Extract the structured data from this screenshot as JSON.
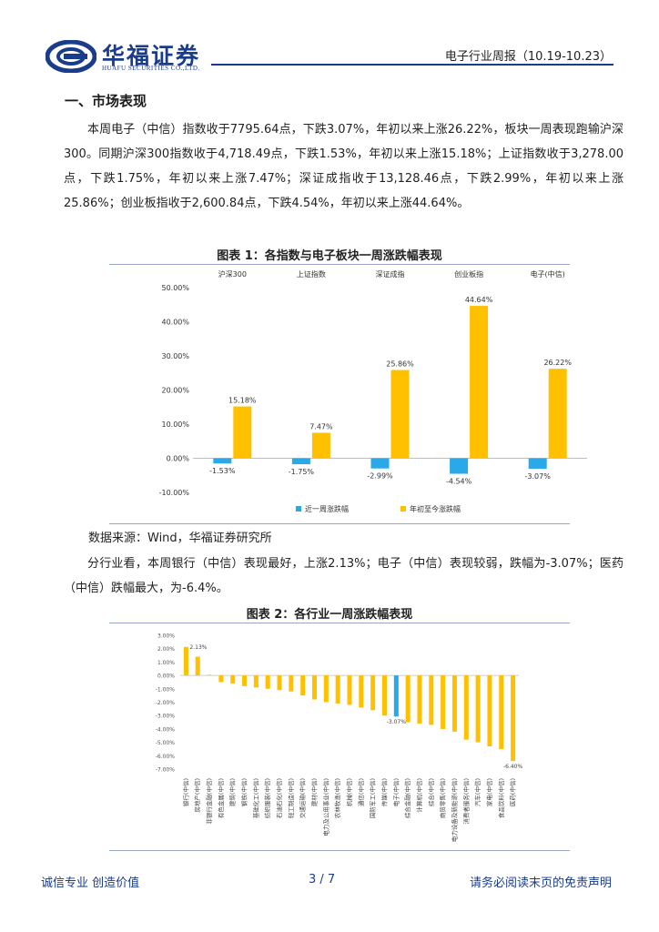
{
  "header": {
    "company_cn": "华福证券",
    "company_en": "HUAFU SECURITIES CO.,LTD.",
    "report_title": "电子行业周报（10.19-10.23）"
  },
  "section": {
    "title": "一、市场表现"
  },
  "paragraph1": "本周电子（中信）指数收于7795.64点，下跌3.07%，年初以来上涨26.22%，板块一周表现跑输沪深300。同期沪深300指数收于4,718.49点，下跌1.53%，年初以来上涨15.18%；上证指数收于3,278.00点，下跌1.75%，年初以来上涨7.47%；深证成指收于13,128.46点，下跌2.99%，年初以来上涨25.86%；创业板指收于2,600.84点，下跌4.54%，年初以来上涨44.64%。",
  "figure1": {
    "title": "图表 1：各指数与电子板块一周涨跌幅表现"
  },
  "source": "数据来源：Wind，华福证券研究所",
  "paragraph2": "分行业看，本周银行（中信）表现最好，上涨2.13%；电子（中信）表现较弱，跌幅为-3.07%；医药（中信）跌幅最大，为-6.4%。",
  "figure2": {
    "title": "图表 2：各行业一周涨跌幅表现"
  },
  "footer": {
    "left": "诚信专业  创造价值",
    "page": "3 / 7",
    "right": "请务必阅读末页的免责声明"
  },
  "colors": {
    "brand": "#1a3c8c",
    "weekly": "#2aa8e8",
    "ytd": "#ffc000"
  },
  "chart_data": [
    {
      "type": "bar",
      "categories": [
        "沪深300",
        "上证指数",
        "深证成指",
        "创业板指",
        "电子(中信)"
      ],
      "series": [
        {
          "name": "近一周涨跌幅",
          "values": [
            -1.53,
            -1.75,
            -2.99,
            -4.54,
            -3.07
          ],
          "labels": [
            "-1.53%",
            "-1.75%",
            "-2.99%",
            "-4.54%",
            "-3.07%"
          ]
        },
        {
          "name": "年初至今涨跌幅",
          "values": [
            15.18,
            7.47,
            25.86,
            44.64,
            26.22
          ],
          "labels": [
            "15.18%",
            "7.47%",
            "25.86%",
            "44.64%",
            "26.22%"
          ]
        }
      ],
      "ylim": [
        -10,
        50
      ],
      "yticks": [
        "50.00%",
        "40.00%",
        "30.00%",
        "20.00%",
        "10.00%",
        "0.00%",
        "-10.00%"
      ],
      "legend": "bottom"
    },
    {
      "type": "bar",
      "categories": [
        "银行(中信)",
        "房地产(中信)",
        "非银行金融(中信)",
        "有色金属(中信)",
        "建筑(中信)",
        "钢铁(中信)",
        "基础化工(中信)",
        "纺织服装(中信)",
        "石油石化(中信)",
        "轻工制造(中信)",
        "交通运输(中信)",
        "建材(中信)",
        "电力及公用事业(中信)",
        "农林牧渔(中信)",
        "机械(中信)",
        "通信(中信)",
        "国防军工(中信)",
        "传媒(中信)",
        "电子(中信)",
        "综合金融(中信)",
        "计算机(中信)",
        "综合(中信)",
        "商贸零售(中信)",
        "电力设备及新能源(中信)",
        "消费者服务(中信)",
        "汽车(中信)",
        "家电(中信)",
        "食品饮料(中信)",
        "医药(中信)"
      ],
      "values": [
        2.13,
        1.4,
        0.05,
        -0.5,
        -0.6,
        -0.8,
        -0.9,
        -1.0,
        -1.1,
        -1.2,
        -1.5,
        -1.8,
        -2.0,
        -2.1,
        -2.2,
        -2.4,
        -2.6,
        -3.0,
        -3.07,
        -3.5,
        -3.6,
        -3.7,
        -4.0,
        -4.2,
        -4.8,
        -5.0,
        -5.3,
        -5.5,
        -6.4
      ],
      "highlight_index": 18,
      "labels": {
        "max": "2.13%",
        "highlight": "-3.07%",
        "min": "-6.40%"
      },
      "ylim": [
        -7,
        3
      ],
      "yticks": [
        "3.00%",
        "2.00%",
        "1.00%",
        "0.00%",
        "-1.00%",
        "-2.00%",
        "-3.00%",
        "-4.00%",
        "-5.00%",
        "-6.00%",
        "-7.00%"
      ]
    }
  ]
}
